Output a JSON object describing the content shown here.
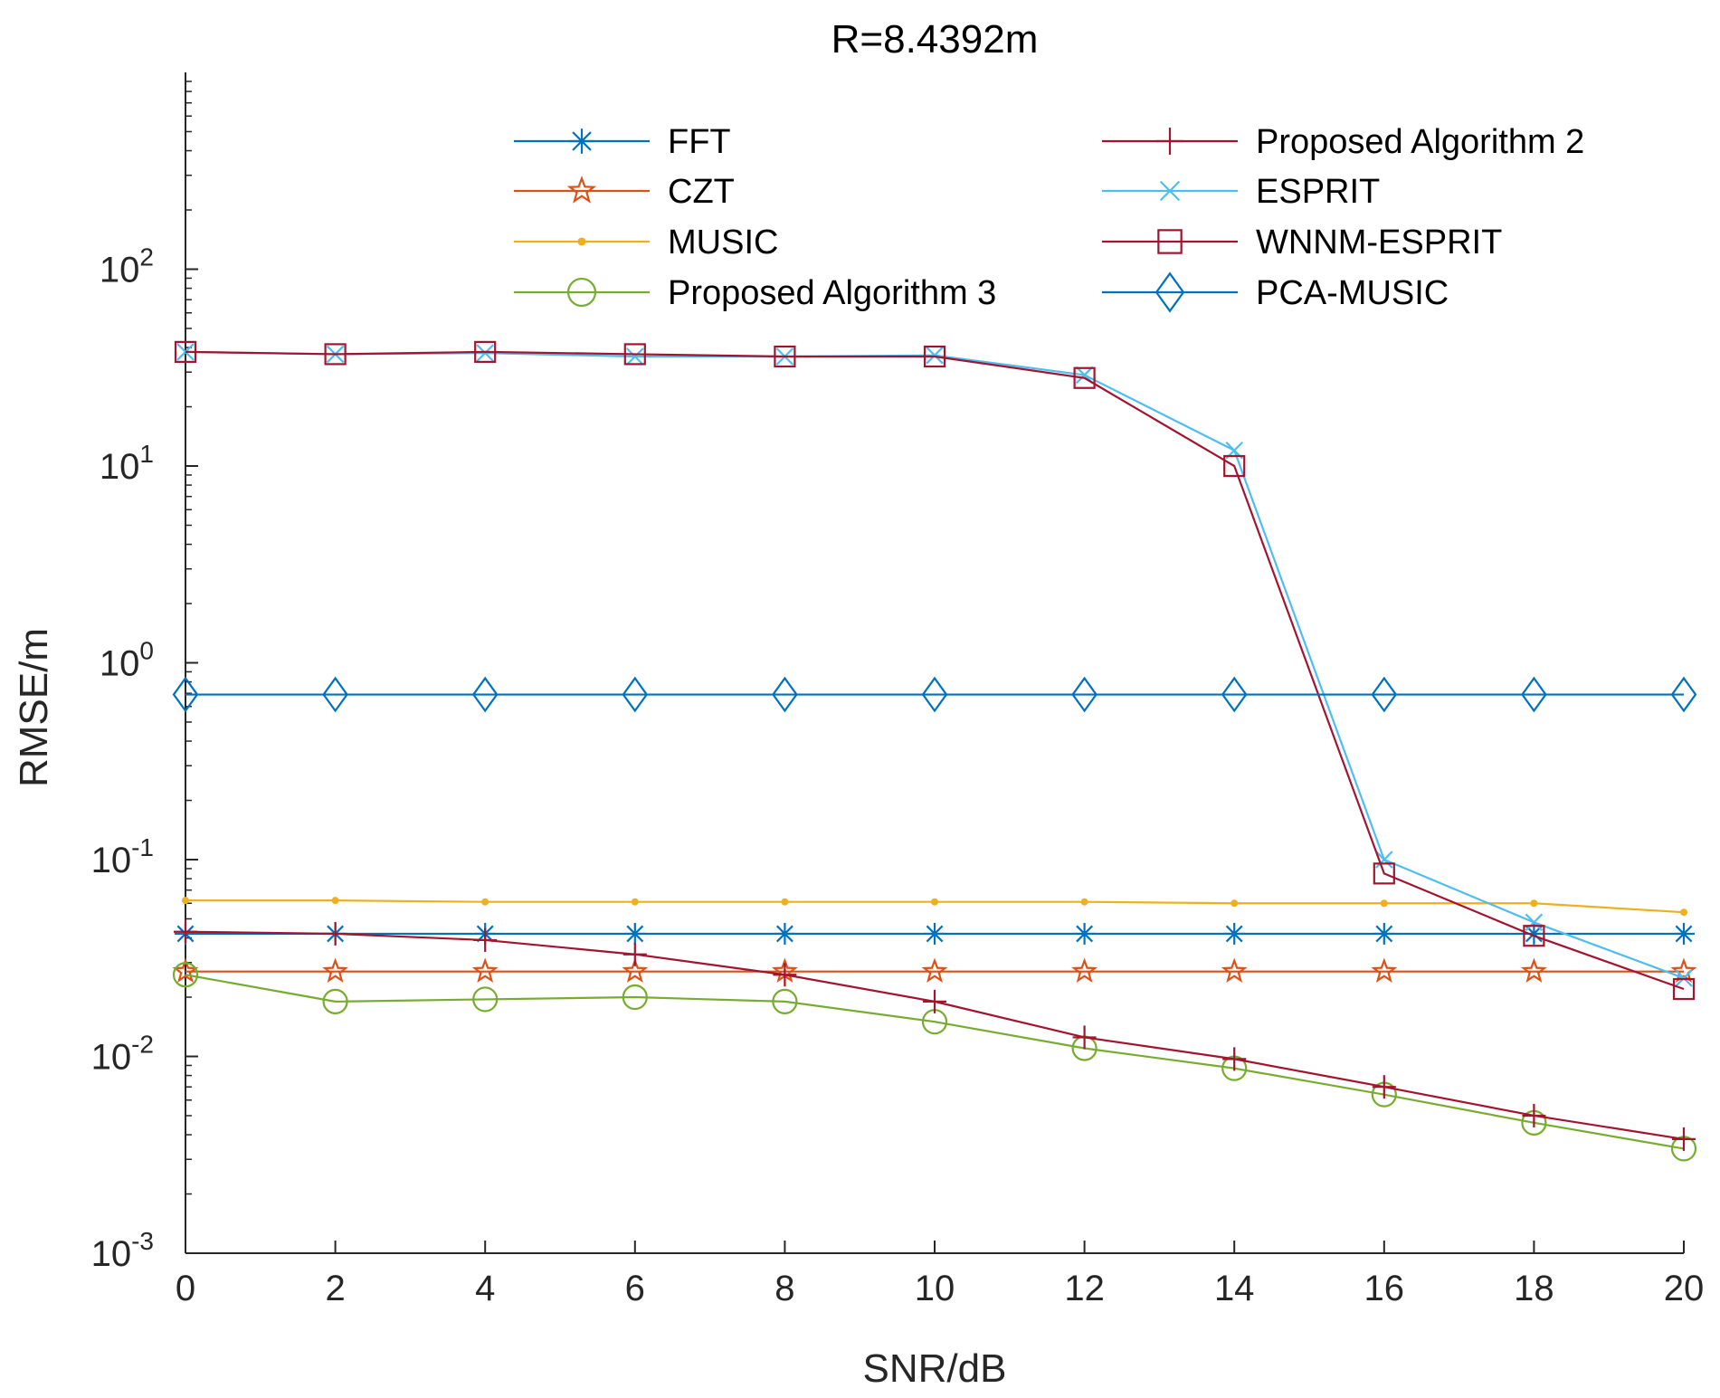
{
  "chart_data": {
    "type": "line",
    "title": "R=8.4392m",
    "xlabel": "SNR/dB",
    "ylabel": "RMSE/m",
    "xlim": [
      0,
      20
    ],
    "yscale": "log",
    "ylim": [
      0.001,
      1000
    ],
    "x": [
      0,
      2,
      4,
      6,
      8,
      10,
      12,
      14,
      16,
      18,
      20
    ],
    "x_tick_labels": [
      "0",
      "2",
      "4",
      "6",
      "8",
      "10",
      "12",
      "14",
      "16",
      "18",
      "20"
    ],
    "y_ticks": [
      {
        "value": 0.001,
        "base": "10",
        "exp": "-3"
      },
      {
        "value": 0.01,
        "base": "10",
        "exp": "-2"
      },
      {
        "value": 0.1,
        "base": "10",
        "exp": "-1"
      },
      {
        "value": 1,
        "base": "10",
        "exp": "0"
      },
      {
        "value": 10,
        "base": "10",
        "exp": "1"
      },
      {
        "value": 100,
        "base": "10",
        "exp": "2"
      }
    ],
    "legend_position": "top",
    "series": [
      {
        "name": "FFT",
        "color": "#0072BD",
        "marker": "asterisk",
        "values": [
          0.042,
          0.042,
          0.042,
          0.042,
          0.042,
          0.042,
          0.042,
          0.042,
          0.042,
          0.042,
          0.042
        ]
      },
      {
        "name": "CZT",
        "color": "#D95319",
        "marker": "star",
        "values": [
          0.027,
          0.027,
          0.027,
          0.027,
          0.027,
          0.027,
          0.027,
          0.027,
          0.027,
          0.027,
          0.027
        ]
      },
      {
        "name": "MUSIC",
        "color": "#EDB120",
        "marker": "dot",
        "values": [
          0.062,
          0.062,
          0.061,
          0.061,
          0.061,
          0.061,
          0.061,
          0.06,
          0.06,
          0.06,
          0.054
        ]
      },
      {
        "name": "Proposed Algorithm 3",
        "color": "#77AC30",
        "marker": "circle",
        "values": [
          0.026,
          0.019,
          0.0195,
          0.02,
          0.019,
          0.015,
          0.011,
          0.0087,
          0.0064,
          0.0046,
          0.0034
        ]
      },
      {
        "name": "Proposed Algorithm 2",
        "color": "#A2142F",
        "marker": "plus",
        "values": [
          0.043,
          0.042,
          0.039,
          0.033,
          0.026,
          0.019,
          0.0125,
          0.0097,
          0.007,
          0.005,
          0.0038
        ]
      },
      {
        "name": "ESPRIT",
        "color": "#4DBEEE",
        "marker": "x",
        "values": [
          38,
          37,
          37.5,
          36,
          36,
          36.5,
          29,
          12,
          0.1,
          0.048,
          0.025
        ]
      },
      {
        "name": "WNNM-ESPRIT",
        "color": "#A2142F",
        "marker": "square",
        "values": [
          38,
          37,
          38,
          37,
          36,
          36,
          28,
          10,
          0.085,
          0.041,
          0.022
        ]
      },
      {
        "name": "PCA-MUSIC",
        "color": "#0072BD",
        "marker": "diamond",
        "values": [
          0.69,
          0.69,
          0.69,
          0.69,
          0.69,
          0.69,
          0.69,
          0.69,
          0.69,
          0.69,
          0.69
        ]
      }
    ]
  }
}
